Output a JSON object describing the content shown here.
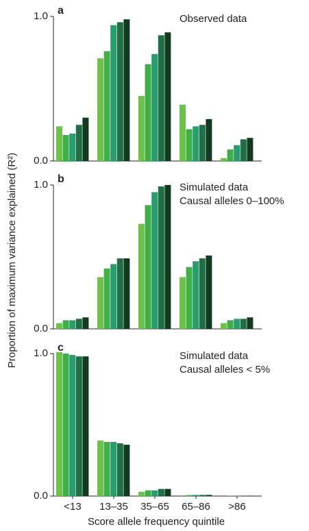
{
  "y_label": "Proportion of maximum variance explained (R²)",
  "x_label": "Score allele frequency quintile",
  "chart_data": [
    {
      "type": "bar",
      "panel": "a",
      "annotation": [
        "Observed data"
      ],
      "ylim": [
        0,
        1
      ],
      "yticks": [
        {
          "value": 0,
          "label": "0.0"
        },
        {
          "value": 1,
          "label": "1.0"
        }
      ],
      "series": [
        {
          "color": "#6cc24a",
          "values": [
            0.24,
            0.71,
            0.45,
            0.39,
            0.02
          ]
        },
        {
          "color": "#3fae49",
          "values": [
            0.18,
            0.76,
            0.67,
            0.22,
            0.08
          ]
        },
        {
          "color": "#2a9d6e",
          "values": [
            0.19,
            0.94,
            0.74,
            0.24,
            0.11
          ]
        },
        {
          "color": "#1f6e45",
          "values": [
            0.25,
            0.96,
            0.87,
            0.25,
            0.15
          ]
        },
        {
          "color": "#123a1f",
          "values": [
            0.3,
            0.98,
            0.89,
            0.29,
            0.16
          ]
        }
      ]
    },
    {
      "type": "bar",
      "panel": "b",
      "annotation": [
        "Simulated data",
        "Causal alleles 0–100%"
      ],
      "ylim": [
        0,
        1
      ],
      "yticks": [
        {
          "value": 0,
          "label": "0.0"
        },
        {
          "value": 1,
          "label": "1.0"
        }
      ],
      "series": [
        {
          "color": "#6cc24a",
          "values": [
            0.04,
            0.36,
            0.73,
            0.36,
            0.04
          ]
        },
        {
          "color": "#3fae49",
          "values": [
            0.06,
            0.42,
            0.86,
            0.43,
            0.06
          ]
        },
        {
          "color": "#2a9d6e",
          "values": [
            0.06,
            0.45,
            0.95,
            0.47,
            0.07
          ]
        },
        {
          "color": "#1f6e45",
          "values": [
            0.07,
            0.49,
            0.99,
            0.49,
            0.07
          ]
        },
        {
          "color": "#123a1f",
          "values": [
            0.08,
            0.49,
            1.0,
            0.51,
            0.08
          ]
        }
      ]
    },
    {
      "type": "bar",
      "panel": "c",
      "annotation": [
        "Simulated data",
        "Causal alleles < 5%"
      ],
      "categories": [
        "<13",
        "13–35",
        "35–65",
        "65–86",
        ">86"
      ],
      "ylim": [
        0,
        1
      ],
      "yticks": [
        {
          "value": 0,
          "label": "0.0"
        },
        {
          "value": 1,
          "label": "1.0"
        }
      ],
      "series": [
        {
          "color": "#6cc24a",
          "values": [
            1.01,
            0.39,
            0.03,
            0.005,
            0
          ]
        },
        {
          "color": "#3fae49",
          "values": [
            1.0,
            0.38,
            0.04,
            0.007,
            0.002
          ]
        },
        {
          "color": "#2a9d6e",
          "values": [
            0.99,
            0.38,
            0.04,
            0.008,
            0.003
          ]
        },
        {
          "color": "#1f6e45",
          "values": [
            0.98,
            0.37,
            0.05,
            0.008,
            0.003
          ]
        },
        {
          "color": "#123a1f",
          "values": [
            0.98,
            0.36,
            0.05,
            0.008,
            0.003
          ]
        }
      ]
    }
  ]
}
